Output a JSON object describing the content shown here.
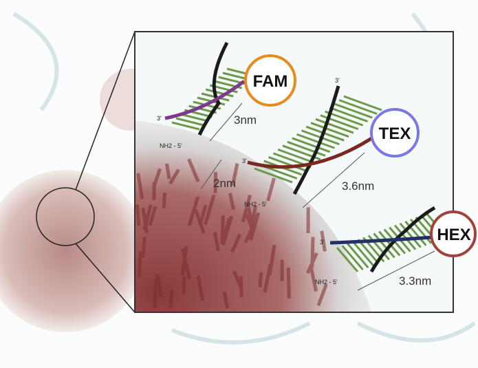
{
  "dyes": [
    "FAM",
    "TEX",
    "HEX"
  ],
  "distances": [
    "3nm",
    "2nm",
    "3.6nm",
    "3.3nm"
  ],
  "three_prime_labels": [
    "3'",
    "3'",
    "3'",
    "3'"
  ],
  "five_prime_labels": [
    "NH2 - 5'",
    "NH2 - 5'",
    "NH2 - 5'"
  ]
}
